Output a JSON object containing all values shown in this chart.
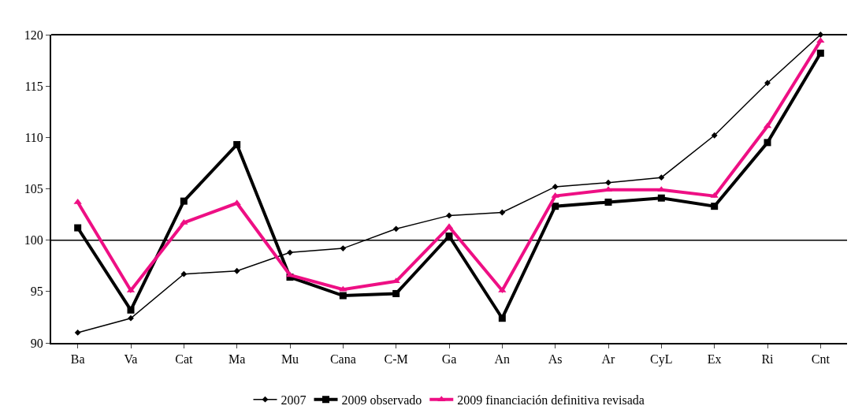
{
  "chart_data": {
    "type": "line",
    "categories": [
      "Ba",
      "Va",
      "Cat",
      "Ma",
      "Mu",
      "Cana",
      "C-M",
      "Ga",
      "An",
      "As",
      "Ar",
      "CyL",
      "Ex",
      "Ri",
      "Cnt"
    ],
    "series": [
      {
        "name": "2007",
        "color": "#000000",
        "marker": "diamond",
        "values": [
          91.0,
          92.4,
          96.7,
          97.0,
          98.8,
          99.2,
          101.1,
          102.4,
          102.7,
          105.2,
          105.6,
          106.1,
          110.2,
          115.3,
          120.0
        ]
      },
      {
        "name": "2009 observado",
        "color": "#000000",
        "marker": "square",
        "values": [
          101.2,
          93.2,
          103.8,
          109.3,
          96.4,
          94.6,
          94.8,
          100.4,
          92.4,
          103.3,
          103.7,
          104.1,
          103.3,
          109.5,
          118.2
        ]
      },
      {
        "name": "2009 financiación definitiva revisada",
        "color": "#ee0f84",
        "marker": "triangle",
        "values": [
          103.7,
          95.1,
          101.7,
          103.6,
          96.6,
          95.2,
          96.0,
          101.3,
          95.1,
          104.3,
          104.9,
          104.9,
          104.3,
          111.1,
          119.4
        ]
      }
    ],
    "ylim": [
      90,
      120
    ],
    "yticks": [
      90,
      95,
      100,
      105,
      110,
      115,
      120
    ],
    "ref_lines": [
      {
        "axis": "y",
        "value": 100,
        "color": "#000000"
      }
    ],
    "grid": false,
    "legend": "bottom"
  }
}
